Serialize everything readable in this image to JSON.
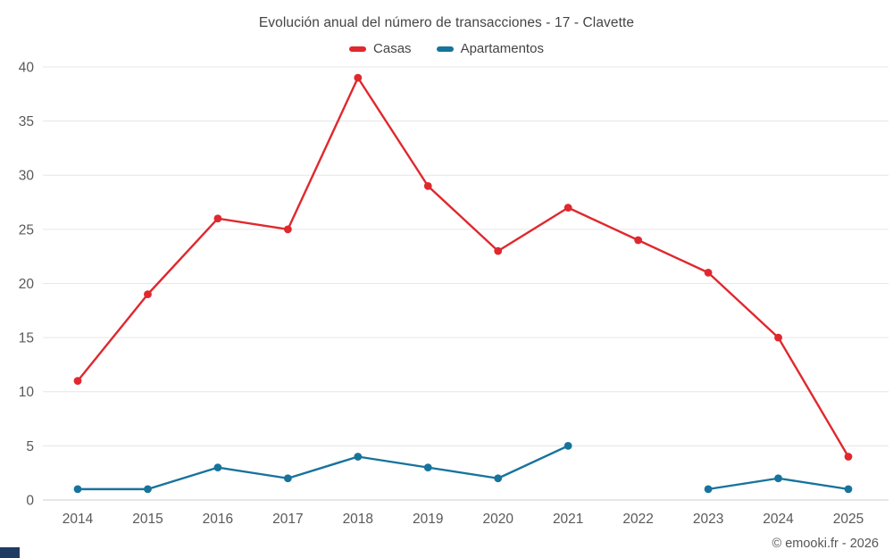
{
  "chart": {
    "footer": "© emooki.fr - 2026",
    "corner_accent_color": "#1f3a63",
    "grid_color": "#e6e6e6",
    "axis_line_color": "#cfcfcf",
    "tick_text_color": "#595959"
  },
  "chart_data": {
    "type": "line",
    "title": "Evolución anual del número de transacciones - 17 - Clavette",
    "categories": [
      2014,
      2015,
      2016,
      2017,
      2018,
      2019,
      2020,
      2021,
      2022,
      2023,
      2024,
      2025
    ],
    "series": [
      {
        "name": "Casas",
        "color": "#e0282e",
        "values": [
          11,
          19,
          26,
          25,
          39,
          29,
          23,
          27,
          24,
          21,
          15,
          4
        ]
      },
      {
        "name": "Apartamentos",
        "color": "#17739c",
        "values": [
          1,
          1,
          3,
          2,
          4,
          3,
          2,
          5,
          null,
          1,
          2,
          1
        ]
      }
    ],
    "xlabel": "",
    "ylabel": "",
    "ylim": [
      0,
      40
    ],
    "ytick_step": 5,
    "grid": true,
    "legend_position": "top"
  }
}
